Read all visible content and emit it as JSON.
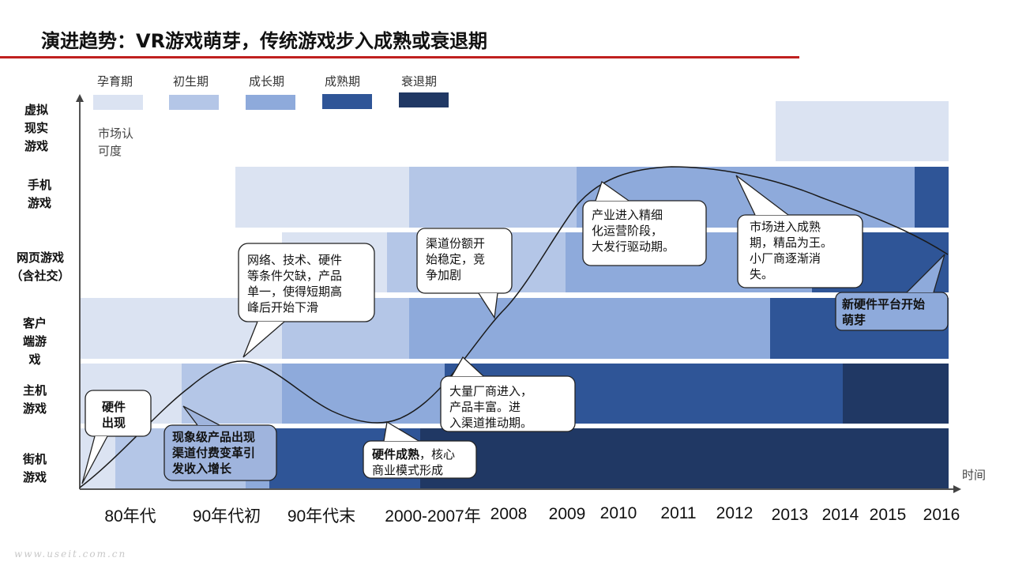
{
  "title": "演进趋势：VR游戏萌芽，传统游戏步入成熟或衰退期",
  "legend": {
    "stages": [
      {
        "label": "孕育期",
        "color": "#dbe3f2"
      },
      {
        "label": "初生期",
        "color": "#b4c6e7"
      },
      {
        "label": "成长期",
        "color": "#8eaadb"
      },
      {
        "label": "成熟期",
        "color": "#2f5597"
      },
      {
        "label": "衰退期",
        "color": "#203864"
      }
    ]
  },
  "axis": {
    "y_note": "市场认\n可度",
    "x_label": "时间"
  },
  "rows": [
    {
      "label": "虚拟\n现实\n游戏"
    },
    {
      "label": "手机\n游戏"
    },
    {
      "label": "网页游戏\n（含社交）"
    },
    {
      "label": "客户\n端游\n戏"
    },
    {
      "label": "主机\n游戏"
    },
    {
      "label": "街机\n游戏"
    }
  ],
  "time_labels": [
    "80年代",
    "90年代初",
    "90年代末",
    "2000-2007年",
    "2008",
    "2009",
    "2010",
    "2011",
    "2012",
    "2013",
    "2014",
    "2015",
    "2016"
  ],
  "callouts": [
    {
      "id": "hardware",
      "text": "硬件\n出现"
    },
    {
      "id": "phenomenal",
      "text": "现象级产品出现\n渠道付费变革引\n发收入增长"
    },
    {
      "id": "network",
      "text": "网络、技术、硬件\n等条件欠缺，产品\n单一，使得短期高\n峰后开始下滑"
    },
    {
      "id": "hw-mature-a",
      "text": "硬件成熟"
    },
    {
      "id": "hw-mature-b",
      "text": "，核心\n商业模式形成"
    },
    {
      "id": "channel-share",
      "text": "渠道份额开\n始稳定，竞\n争加剧"
    },
    {
      "id": "vendors",
      "text": "大量厂商进入，\n产品丰富。进\n入渠道推动期。"
    },
    {
      "id": "industry",
      "text": "产业进入精细\n化运营阶段，\n大发行驱动期。"
    },
    {
      "id": "mature-market",
      "text": "市场进入成熟\n期，精品为王。\n小厂商逐渐消\n失。"
    },
    {
      "id": "new-hardware",
      "text": "新硬件平台开始\n萌芽"
    }
  ],
  "watermark": "www.useit.com.cn"
}
